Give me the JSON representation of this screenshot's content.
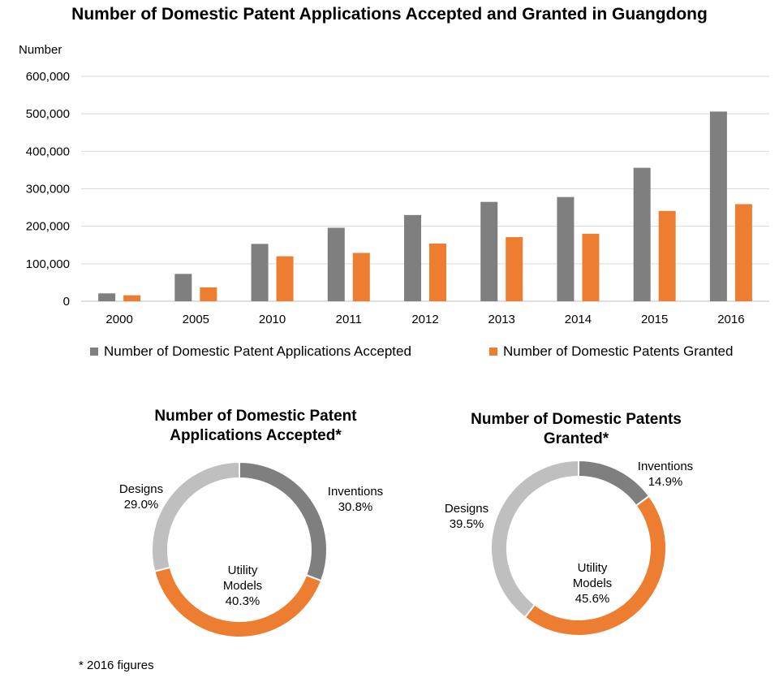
{
  "chart_data": [
    {
      "type": "bar",
      "title": "Number of Domestic Patent Applications Accepted and Granted in Guangdong",
      "ylabel": "Number",
      "xlabel": "",
      "categories": [
        "2000",
        "2005",
        "2010",
        "2011",
        "2012",
        "2013",
        "2014",
        "2015",
        "2016"
      ],
      "ylim": [
        0,
        600000
      ],
      "yticks": [
        "0",
        "100,000",
        "200,000",
        "300,000",
        "400,000",
        "500,000",
        "600,000"
      ],
      "ytick_values": [
        0,
        100000,
        200000,
        300000,
        400000,
        500000,
        600000
      ],
      "grid": true,
      "legend_position": "bottom",
      "series": [
        {
          "name": "Number of Domestic Patent Applications Accepted",
          "color": "#7f7f7f",
          "values": [
            21000,
            73000,
            153000,
            196000,
            230000,
            265000,
            278000,
            356000,
            506000
          ]
        },
        {
          "name": "Number of Domestic Patents Granted",
          "color": "#ed7d31",
          "values": [
            16000,
            37000,
            120000,
            129000,
            154000,
            171000,
            180000,
            241000,
            259000
          ]
        }
      ]
    },
    {
      "type": "pie",
      "title": "Number of Domestic Patent Applications Accepted*",
      "donut": true,
      "slices": [
        {
          "label": "Inventions",
          "value": 30.8,
          "display": "30.8%",
          "color": "#7f7f7f"
        },
        {
          "label": "Utility Models",
          "value": 40.3,
          "display": "40.3%",
          "color": "#ed7d31"
        },
        {
          "label": "Designs",
          "value": 29.0,
          "display": "29.0%",
          "color": "#bfbfbf"
        }
      ]
    },
    {
      "type": "pie",
      "title": "Number of Domestic Patents Granted*",
      "donut": true,
      "slices": [
        {
          "label": "Inventions",
          "value": 14.9,
          "display": "14.9%",
          "color": "#7f7f7f"
        },
        {
          "label": "Utility Models",
          "value": 45.6,
          "display": "45.6%",
          "color": "#ed7d31"
        },
        {
          "label": "Designs",
          "value": 39.5,
          "display": "39.5%",
          "color": "#bfbfbf"
        }
      ]
    }
  ],
  "footnote": "* 2016 figures"
}
